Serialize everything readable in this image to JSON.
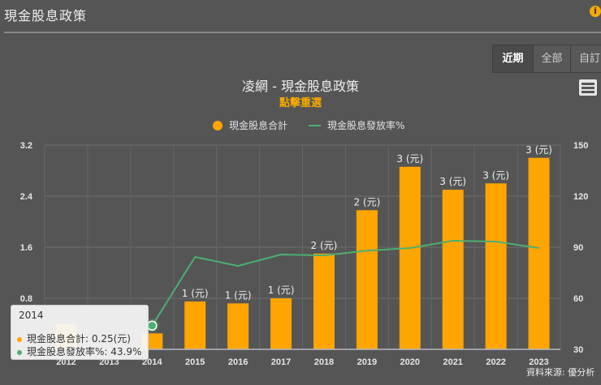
{
  "header": {
    "title": "現金股息政策",
    "info_icon": "info-icon"
  },
  "range_buttons": [
    {
      "label": "近期",
      "active": true
    },
    {
      "label": "全部",
      "active": false
    },
    {
      "label": "自訂",
      "active": false
    }
  ],
  "menu_icon": "hamburger-menu-icon",
  "colors": {
    "bar": "#ffa500",
    "line": "#4caf72",
    "background": "#555555",
    "accent": "#f5a900"
  },
  "chart_data": {
    "type": "bar+line",
    "title": "凌網 - 現金股息政策",
    "subtitle": "點擊重選",
    "categories": [
      "2012",
      "2013",
      "2014",
      "2015",
      "2016",
      "2017",
      "2018",
      "2019",
      "2020",
      "2021",
      "2022",
      "2023"
    ],
    "series": [
      {
        "name": "現金股息合計",
        "type": "bar",
        "axis": "left",
        "unit": "元",
        "values": [
          0.4,
          null,
          0.25,
          0.75,
          0.72,
          0.8,
          1.5,
          2.18,
          2.86,
          2.5,
          2.6,
          3.0
        ],
        "data_labels": [
          "",
          "",
          "",
          "1 (元)",
          "1 (元)",
          "1 (元)",
          "2 (元)",
          "2 (元)",
          "3 (元)",
          "3 (元)",
          "3 (元)",
          "3 (元)"
        ]
      },
      {
        "name": "現金股息發放率%",
        "type": "line",
        "axis": "right",
        "values": [
          null,
          null,
          43.9,
          84.3,
          79.0,
          85.7,
          85.2,
          88.0,
          89.5,
          93.8,
          93.3,
          89.5
        ]
      }
    ],
    "left_axis": {
      "ticks": [
        "0.8",
        "1.6",
        "2.4",
        "3.2"
      ],
      "range": [
        0,
        3.2
      ]
    },
    "right_axis": {
      "ticks": [
        "30",
        "60",
        "90",
        "120",
        "150"
      ],
      "range": [
        30,
        150
      ]
    },
    "legend": {
      "position": "top",
      "items": [
        "現金股息合計",
        "現金股息發放率%"
      ]
    },
    "grid": true
  },
  "tooltip": {
    "title": "2014",
    "rows": [
      {
        "label": "現金股息合計: 0.25(元)",
        "color": "#ffa500"
      },
      {
        "label": "現金股息發放率%: 43.9%",
        "color": "#4caf72"
      }
    ]
  },
  "source": "資料來源: 優分析"
}
